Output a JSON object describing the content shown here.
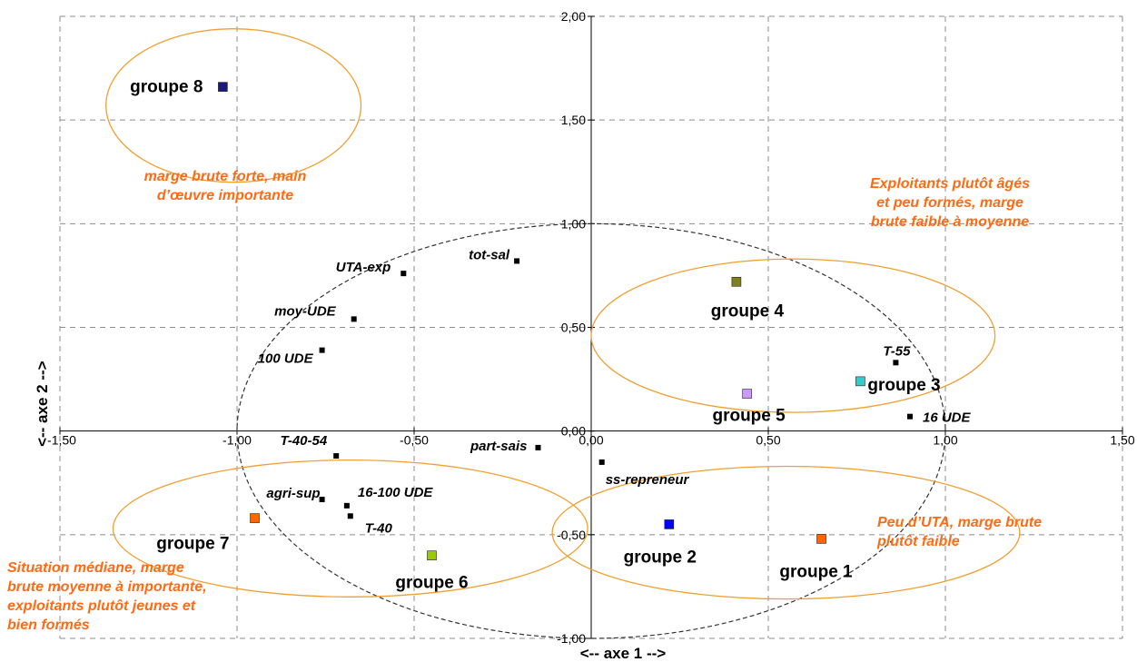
{
  "chart_data": {
    "type": "scatter",
    "xlabel": "<-- axe 1 -->",
    "ylabel": "<-- axe 2 -->",
    "xlim": [
      -1.5,
      1.5
    ],
    "ylim": [
      -1.0,
      2.0
    ],
    "x_ticks": [
      "-1,50",
      "-1,00",
      "-0,50",
      "0,00",
      "0,50",
      "1,00",
      "1,50"
    ],
    "y_ticks": [
      "-1,00",
      "-0,50",
      "0,00",
      "0,50",
      "1,00",
      "1,50",
      "2,00"
    ],
    "grid": true,
    "correlation_circle": {
      "center": [
        0,
        0
      ],
      "radius": 1.0
    },
    "variables": [
      {
        "label": "tot-sal",
        "x": -0.21,
        "y": 0.82
      },
      {
        "label": "UTA-exp",
        "x": -0.53,
        "y": 0.76
      },
      {
        "label": "moy-UDE",
        "x": -0.67,
        "y": 0.54
      },
      {
        "label": "100 UDE",
        "x": -0.76,
        "y": 0.39
      },
      {
        "label": "T-55",
        "x": 0.86,
        "y": 0.33
      },
      {
        "label": "16 UDE",
        "x": 0.9,
        "y": 0.07
      },
      {
        "label": "T-40-54",
        "x": -0.72,
        "y": -0.12
      },
      {
        "label": "part-sais",
        "x": -0.15,
        "y": -0.08
      },
      {
        "label": "ss-repreneur",
        "x": 0.03,
        "y": -0.15
      },
      {
        "label": "agri-sup",
        "x": -0.76,
        "y": -0.33
      },
      {
        "label": "16-100 UDE",
        "x": -0.69,
        "y": -0.36
      },
      {
        "label": "T-40",
        "x": -0.68,
        "y": -0.41
      }
    ],
    "groups": [
      {
        "label": "groupe 8",
        "x": -1.04,
        "y": 1.66,
        "color": "#1a1a7e"
      },
      {
        "label": "groupe 4",
        "x": 0.41,
        "y": 0.72,
        "color": "#808020"
      },
      {
        "label": "groupe 3",
        "x": 0.76,
        "y": 0.24,
        "color": "#33cccc"
      },
      {
        "label": "groupe 5",
        "x": 0.44,
        "y": 0.18,
        "color": "#cc99ff"
      },
      {
        "label": "groupe 2",
        "x": 0.22,
        "y": -0.45,
        "color": "#0000ff"
      },
      {
        "label": "groupe 1",
        "x": 0.65,
        "y": -0.52,
        "color": "#ff6600"
      },
      {
        "label": "groupe 7",
        "x": -0.95,
        "y": -0.42,
        "color": "#ff6600"
      },
      {
        "label": "groupe 6",
        "x": -0.45,
        "y": -0.6,
        "color": "#99cc00"
      }
    ],
    "cluster_ellipses": [
      {
        "cx": -1.01,
        "cy": 1.57,
        "rx": 0.36,
        "ry": 0.37
      },
      {
        "cx": 0.57,
        "cy": 0.46,
        "rx": 0.57,
        "ry": 0.37
      },
      {
        "cx": 0.55,
        "cy": -0.49,
        "rx": 0.66,
        "ry": 0.32
      },
      {
        "cx": -0.68,
        "cy": -0.47,
        "rx": 0.67,
        "ry": 0.33
      }
    ],
    "annotations": [
      {
        "lines": [
          "marge brute forte, main",
          "d’œuvre importante"
        ],
        "color": "#ff6a13"
      },
      {
        "lines": [
          "Exploitants plutôt âgés",
          "et peu formés, marge",
          "brute faible à moyenne"
        ],
        "color": "#ff6a13"
      },
      {
        "lines": [
          "Peu d’UTA, marge brute",
          "plutôt faible"
        ],
        "color": "#ff6a13"
      },
      {
        "lines": [
          "Situation médiane, marge",
          "brute moyenne à importante,",
          "exploitants plutôt jeunes et",
          "bien formés"
        ],
        "color": "#ff6a13"
      }
    ],
    "colors": {
      "ellipse": "#f0a030",
      "circle": "#333333",
      "grid": "#8c8c8c",
      "variable_marker": "#000000"
    }
  }
}
